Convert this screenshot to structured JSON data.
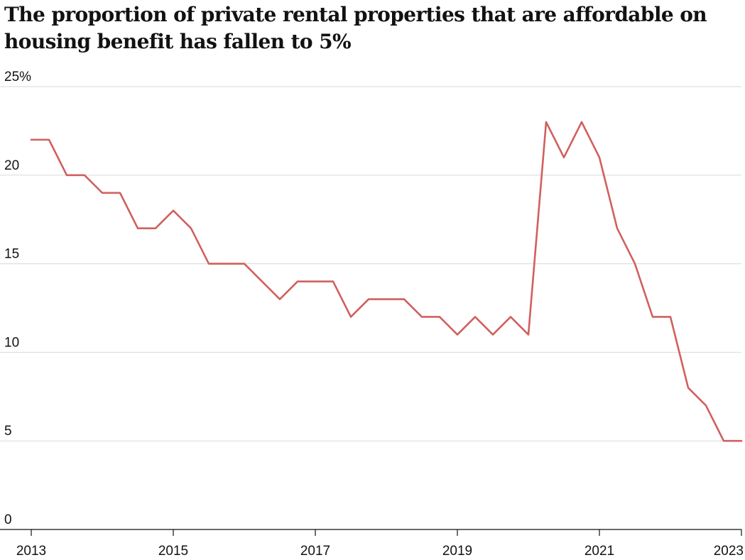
{
  "chart_data": {
    "type": "line",
    "title": "The proportion of private rental properties that are affordable on housing benefit has fallen to 5%",
    "xlabel": "",
    "ylabel": "",
    "x_ticks": [
      "2013",
      "2015",
      "2017",
      "2019",
      "2021",
      "2023"
    ],
    "xlim": [
      "2013-01",
      "2023-01"
    ],
    "y_ticks": [
      0,
      5,
      10,
      15,
      20,
      25
    ],
    "y_tick_labels": [
      "0",
      "5",
      "10",
      "15",
      "20",
      "25%"
    ],
    "ylim": [
      0,
      25
    ],
    "grid": true,
    "legend": "none",
    "color": "#d0605e",
    "series": [
      {
        "x": [
          "2013-01",
          "2013-04",
          "2013-07",
          "2013-10",
          "2014-01",
          "2014-04",
          "2014-07",
          "2014-10",
          "2015-01",
          "2015-04",
          "2015-07",
          "2015-10",
          "2016-01",
          "2016-04",
          "2016-07",
          "2016-10",
          "2017-01",
          "2017-04",
          "2017-07",
          "2017-10",
          "2018-01",
          "2018-04",
          "2018-07",
          "2018-10",
          "2019-01",
          "2019-04",
          "2019-07",
          "2019-10",
          "2020-01",
          "2020-04",
          "2020-07",
          "2020-10",
          "2021-01",
          "2021-04",
          "2021-07",
          "2021-10",
          "2022-01",
          "2022-04",
          "2022-07",
          "2022-10",
          "2023-01"
        ],
        "values": [
          22,
          22,
          20,
          20,
          19,
          19,
          17,
          17,
          18,
          17,
          15,
          15,
          15,
          14,
          13,
          14,
          14,
          14,
          12,
          13,
          13,
          13,
          12,
          12,
          11,
          12,
          11,
          12,
          11,
          23,
          21,
          23,
          21,
          17,
          15,
          12,
          12,
          8,
          7,
          5,
          5
        ]
      }
    ]
  }
}
